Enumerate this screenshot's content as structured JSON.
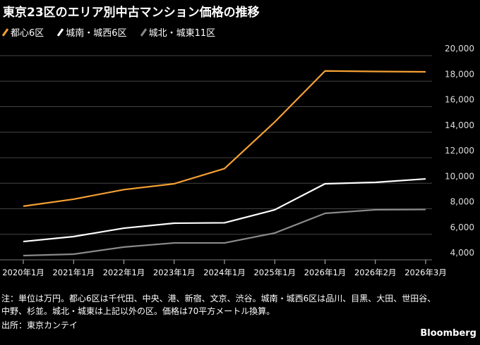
{
  "chart_data": {
    "type": "line",
    "title": "東京23区のエリア別中古マンション価格の推移",
    "categories": [
      "2020年1月",
      "2021年1月",
      "2022年1月",
      "2023年1月",
      "2024年1月",
      "2025年1月",
      "2026年1月",
      "2026年2月",
      "2026年3月"
    ],
    "series": [
      {
        "name": "都心6区",
        "color": "#f5a035",
        "values": [
          8200,
          8750,
          9500,
          9960,
          11150,
          14800,
          18800,
          18760,
          18730
        ]
      },
      {
        "name": "城南・城西6区",
        "color": "#ffffff",
        "values": [
          5430,
          5820,
          6480,
          6870,
          6900,
          7920,
          9960,
          10070,
          10340
        ]
      },
      {
        "name": "城北・城東11区",
        "color": "#8a8a8a",
        "values": [
          4330,
          4440,
          5000,
          5320,
          5320,
          6100,
          7640,
          7920,
          7940
        ]
      }
    ],
    "ylim": [
      4000,
      20000
    ],
    "yticks": [
      4000,
      6000,
      8000,
      10000,
      12000,
      14000,
      16000,
      18000,
      20000
    ],
    "ytick_labels": [
      "4,000",
      "6,000",
      "8,000",
      "10,000",
      "12,000",
      "14,000",
      "16,000",
      "18,000",
      "20,000"
    ],
    "xlabel": "",
    "ylabel": "",
    "grid": true,
    "legend_position": "top-left"
  },
  "notes": {
    "line1": "注：単位は万円。都心6区は千代田、中央、港、新宿、文京、渋谷。城南・城西6区は品川、目黒、大田、世田谷、",
    "line2": "中野、杉並。城北・城東は上記以外の区。価格は70平方メートル換算。",
    "source": "出所：東京カンテイ",
    "brand": "Bloomberg"
  }
}
